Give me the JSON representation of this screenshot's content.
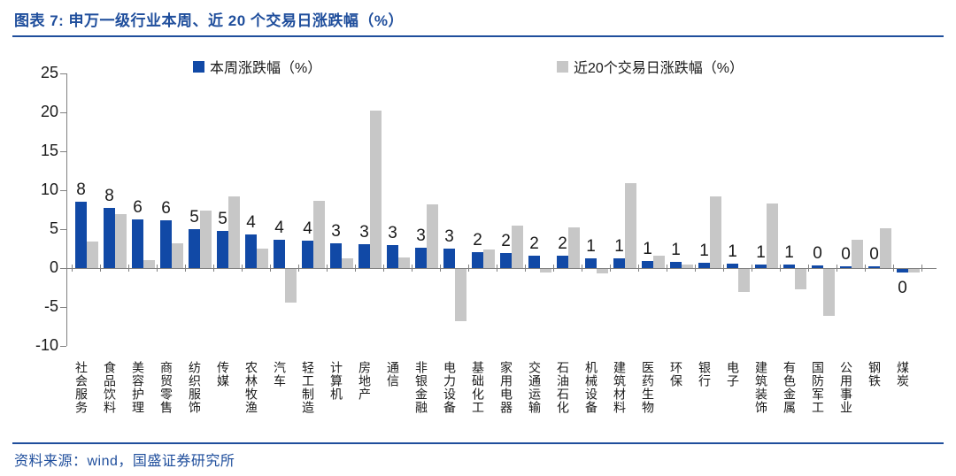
{
  "header": {
    "title": "图表 7:  申万一级行业本周、近 20 个交易日涨跌幅（%）"
  },
  "footer": {
    "source": "资料来源：wind，国盛证券研究所"
  },
  "colors": {
    "accent_blue": "#1F4E9C",
    "bar_blue": "#1149A6",
    "bar_gray": "#C7C7C7",
    "axis_gray": "#808080"
  },
  "chart_data": {
    "type": "bar",
    "title": "申万一级行业本周、近 20 个交易日涨跌幅（%）",
    "legend_position": "top",
    "grid": false,
    "ylim": [
      -10,
      25
    ],
    "yticks": [
      25,
      20,
      15,
      10,
      5,
      0,
      -5,
      -10
    ],
    "categories": [
      "社会服务",
      "食品饮料",
      "美容护理",
      "商贸零售",
      "纺织服饰",
      "传媒",
      "农林牧渔",
      "汽车",
      "轻工制造",
      "计算机",
      "房地产",
      "通信",
      "非银金融",
      "电力设备",
      "基础化工",
      "家用电器",
      "交通运输",
      "石油石化",
      "机械设备",
      "建筑材料",
      "医药生物",
      "环保",
      "银行",
      "电子",
      "建筑装饰",
      "有色金属",
      "国防军工",
      "公用事业",
      "钢铁",
      "煤炭"
    ],
    "series": [
      {
        "name": "本周涨跌幅（%）",
        "color": "#1149A6",
        "values": [
          8.5,
          7.7,
          6.3,
          6.1,
          5.0,
          4.8,
          4.3,
          3.6,
          3.5,
          3.2,
          3.1,
          3.0,
          2.6,
          2.5,
          2.0,
          1.9,
          1.6,
          1.6,
          1.3,
          1.2,
          0.9,
          0.8,
          0.7,
          0.6,
          0.5,
          0.5,
          0.3,
          0.2,
          0.2,
          -0.4
        ],
        "data_labels": [
          "8",
          "8",
          "6",
          "6",
          "5",
          "5",
          "4",
          "4",
          "4",
          "3",
          "3",
          "3",
          "3",
          "3",
          "2",
          "2",
          "2",
          "2",
          "1",
          "1",
          "1",
          "1",
          "1",
          "1",
          "1",
          "1",
          "0",
          "0",
          "0",
          "0"
        ]
      },
      {
        "name": "近20个交易日涨跌幅（%）",
        "color": "#C7C7C7",
        "values": [
          3.4,
          6.9,
          1.0,
          3.2,
          7.4,
          9.2,
          2.5,
          -4.3,
          8.6,
          1.3,
          20.2,
          1.4,
          8.2,
          -6.7,
          2.4,
          5.5,
          -0.4,
          5.2,
          -0.6,
          10.9,
          1.6,
          0.5,
          9.2,
          -2.9,
          8.3,
          -2.6,
          -6.0,
          3.6,
          5.1,
          -0.5
        ]
      }
    ]
  }
}
